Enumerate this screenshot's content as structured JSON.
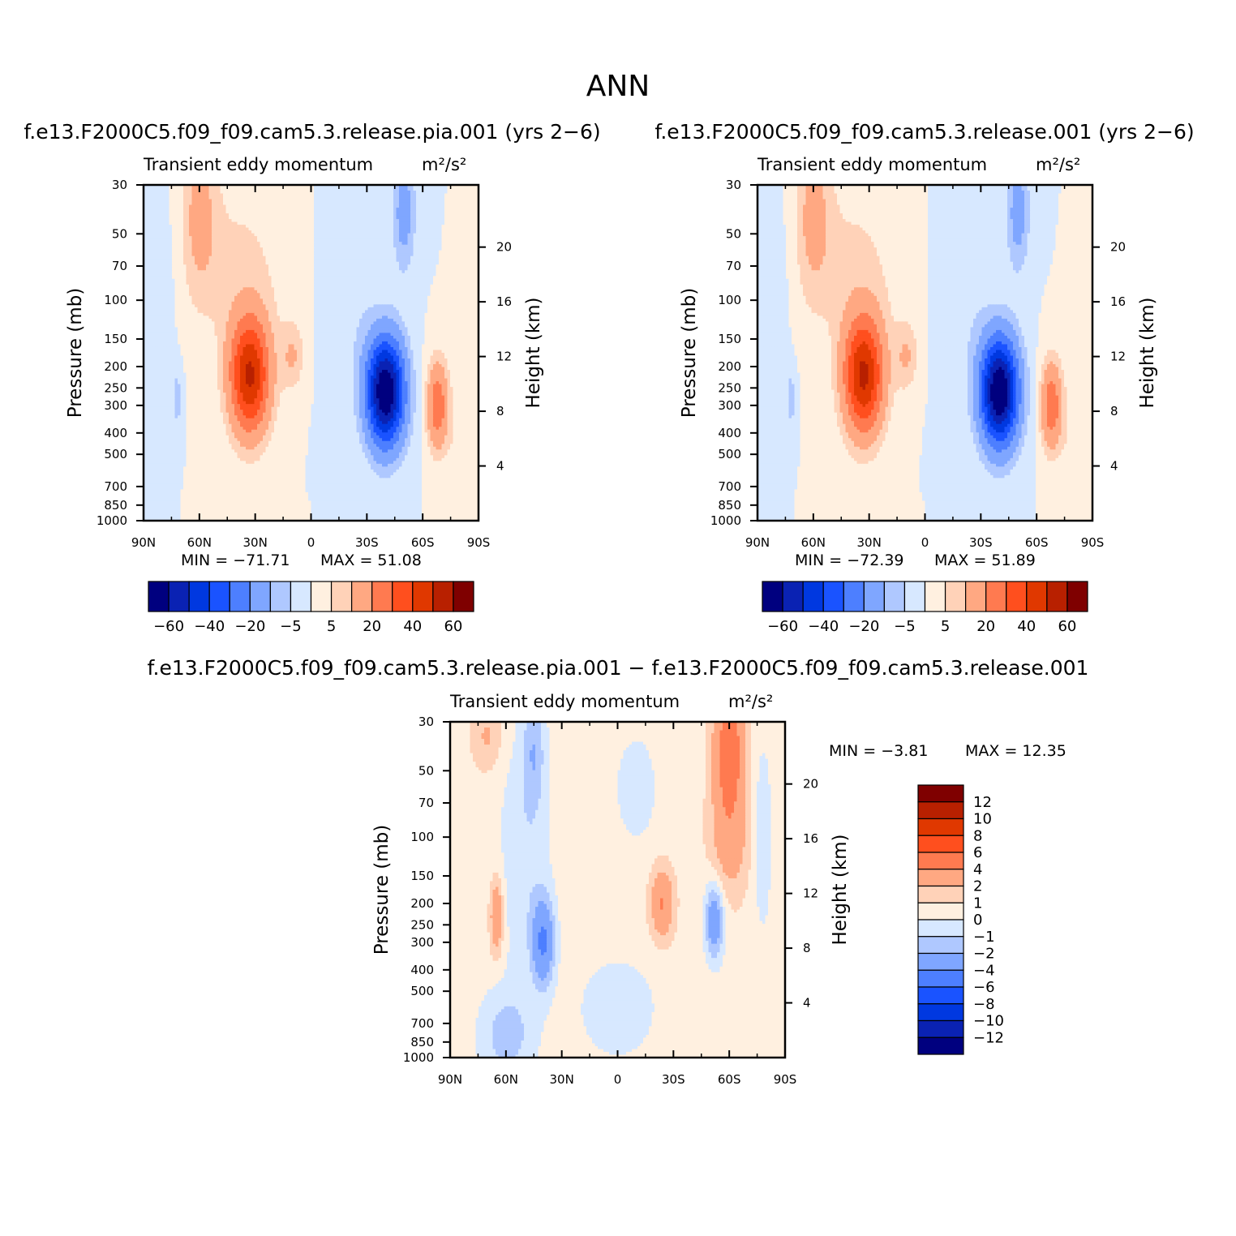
{
  "figure": {
    "title": "ANN"
  },
  "colors": {
    "cool": [
      "#00007f",
      "#0a22b3",
      "#0038e0",
      "#1a53ff",
      "#4d7fff",
      "#7fa6ff",
      "#afc8ff",
      "#d7e8ff"
    ],
    "warm": [
      "#fff0e0",
      "#ffd2b8",
      "#ffa882",
      "#ff7a50",
      "#ff4f1e",
      "#e03800",
      "#b82000",
      "#7f0000"
    ]
  },
  "chart_data": [
    {
      "type": "heatmap",
      "title": "f.e13.F2000C5.f09_f09.cam5.3.release.pia.001 (yrs 2−6)",
      "subtitle": "Transient eddy momentum",
      "units": "m²/s²",
      "ylabel": "Pressure (mb)",
      "ylabel_right": "Height (km)",
      "x_ticks": [
        "90N",
        "60N",
        "30N",
        "0",
        "30S",
        "60S",
        "90S"
      ],
      "y_ticks": [
        "30",
        "50",
        "70",
        "100",
        "150",
        "200",
        "250",
        "300",
        "400",
        "500",
        "700",
        "850",
        "1000"
      ],
      "y2_ticks": [
        "20",
        "16",
        "12",
        "8",
        "4"
      ],
      "min_label": "MIN = −71.71",
      "max_label": "MAX = 51.08",
      "min": -71.71,
      "max": 51.08,
      "colorbar_labels": [
        "−60",
        "−40",
        "−20",
        "−5",
        "5",
        "20",
        "40",
        "60"
      ],
      "features": [
        {
          "lat": -40,
          "p": 250,
          "value": -71.71
        },
        {
          "lat": 33,
          "p": 220,
          "value": 51.08
        },
        {
          "lat": -69,
          "p": 300,
          "value": 30
        }
      ]
    },
    {
      "type": "heatmap",
      "title": "f.e13.F2000C5.f09_f09.cam5.3.release.001 (yrs 2−6)",
      "subtitle": "Transient eddy momentum",
      "units": "m²/s²",
      "ylabel": "Pressure (mb)",
      "ylabel_right": "Height (km)",
      "x_ticks": [
        "90N",
        "60N",
        "30N",
        "0",
        "30S",
        "60S",
        "90S"
      ],
      "y_ticks": [
        "30",
        "50",
        "70",
        "100",
        "150",
        "200",
        "250",
        "300",
        "400",
        "500",
        "700",
        "850",
        "1000"
      ],
      "y2_ticks": [
        "20",
        "16",
        "12",
        "8",
        "4"
      ],
      "min_label": "MIN = −72.39",
      "max_label": "MAX = 51.89",
      "min": -72.39,
      "max": 51.89,
      "colorbar_labels": [
        "−60",
        "−40",
        "−20",
        "−5",
        "5",
        "20",
        "40",
        "60"
      ],
      "features": [
        {
          "lat": -40,
          "p": 250,
          "value": -72.39
        },
        {
          "lat": 33,
          "p": 220,
          "value": 51.89
        },
        {
          "lat": -68,
          "p": 300,
          "value": 28
        }
      ]
    },
    {
      "type": "heatmap",
      "title": "f.e13.F2000C5.f09_f09.cam5.3.release.pia.001 − f.e13.F2000C5.f09_f09.cam5.3.release.001",
      "subtitle": "Transient eddy momentum",
      "units": "m²/s²",
      "ylabel": "Pressure (mb)",
      "ylabel_right": "Height (km)",
      "x_ticks": [
        "90N",
        "60N",
        "30N",
        "0",
        "30S",
        "60S",
        "90S"
      ],
      "y_ticks": [
        "30",
        "50",
        "70",
        "100",
        "150",
        "200",
        "250",
        "300",
        "400",
        "500",
        "700",
        "850",
        "1000"
      ],
      "y2_ticks": [
        "20",
        "16",
        "12",
        "8",
        "4"
      ],
      "min_label": "MIN = −3.81",
      "max_label": "MAX = 12.35",
      "min": -3.81,
      "max": 12.35,
      "colorbar_labels": [
        "12",
        "10",
        "8",
        "6",
        "4",
        "2",
        "1",
        "0",
        "−1",
        "−2",
        "−4",
        "−6",
        "−8",
        "−10",
        "−12"
      ],
      "features": [
        {
          "lat": -60,
          "p": 50,
          "value": 4
        },
        {
          "lat": 40,
          "p": 280,
          "value": -2
        },
        {
          "lat": 65,
          "p": 220,
          "value": 3
        },
        {
          "lat": -23,
          "p": 200,
          "value": 3
        },
        {
          "lat": -52,
          "p": 250,
          "value": -2
        }
      ]
    }
  ]
}
